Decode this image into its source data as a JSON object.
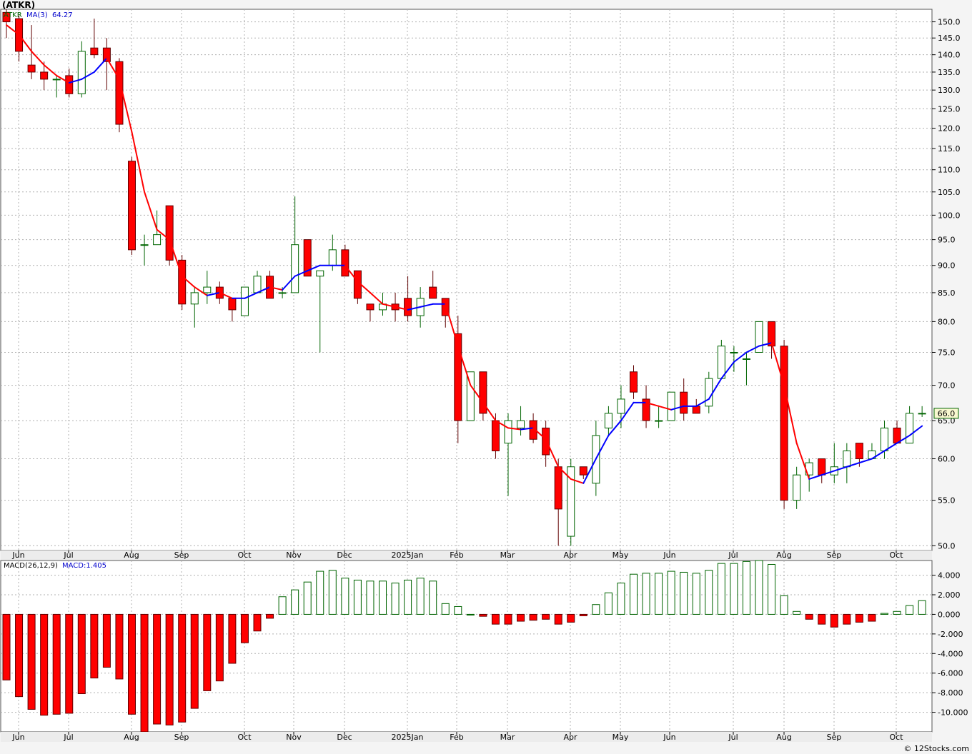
{
  "ticker_title": "(ATKR)",
  "credit": "© 12Stocks.com",
  "legend_price": {
    "ticker": "ATKR",
    "ma_label": "MA(3)",
    "ma_value": "64.27"
  },
  "legend_macd": {
    "label": "MACD(26,12,9)",
    "value": "MACD:1.405"
  },
  "last_price_label": "66.0",
  "colors": {
    "up": "#ffffff",
    "up_border": "#006400",
    "down": "#ff0000",
    "down_border": "#600000",
    "ma_up": "#0000ff",
    "ma_down": "#ff0000",
    "grid": "#b0b0b0",
    "hist_pos": "#ffffff",
    "hist_pos_border": "#006400",
    "hist_neg": "#ff0000"
  },
  "chart_data": [
    {
      "type": "candlestick",
      "scale": "log",
      "ylim": [
        49.5,
        154
      ],
      "y_ticks": [
        "50.0",
        "55.0",
        "60.0",
        "65.0",
        "70.0",
        "75.0",
        "80.0",
        "85.0",
        "90.0",
        "95.0",
        "100.0",
        "105.0",
        "110.0",
        "115.0",
        "120.0",
        "125.0",
        "130.0",
        "135.0",
        "140.0",
        "145.0",
        "150.0"
      ],
      "x_labels": [
        "Jun",
        "Jul",
        "Aug",
        "Sep",
        "Oct",
        "Nov",
        "Dec",
        "2025Jan",
        "Feb",
        "Mar",
        "Apr",
        "May",
        "Jun",
        "Jul",
        "Aug",
        "Sep",
        "Oct"
      ],
      "ohlc": [
        [
          153,
          154,
          145,
          150
        ],
        [
          151,
          152,
          138,
          141
        ],
        [
          137,
          149,
          133,
          135
        ],
        [
          135,
          138,
          130,
          133
        ],
        [
          133,
          134,
          128,
          133
        ],
        [
          134,
          136,
          128,
          129
        ],
        [
          129,
          144,
          128,
          141
        ],
        [
          142,
          151,
          139,
          140
        ],
        [
          142,
          145,
          130,
          138
        ],
        [
          138,
          139,
          119,
          121
        ],
        [
          112,
          113,
          92,
          93
        ],
        [
          94,
          96,
          90,
          94
        ],
        [
          94,
          101,
          94,
          96
        ],
        [
          102,
          102,
          90,
          91
        ],
        [
          91,
          92,
          82,
          83
        ],
        [
          83,
          86,
          79,
          85
        ],
        [
          85,
          89,
          83,
          86
        ],
        [
          86,
          87,
          83,
          84
        ],
        [
          84,
          84,
          80,
          82
        ],
        [
          81,
          86,
          81,
          86
        ],
        [
          85,
          89,
          85,
          88
        ],
        [
          88,
          89,
          84,
          84
        ],
        [
          85,
          86,
          84,
          85
        ],
        [
          85,
          104,
          85,
          94
        ],
        [
          95,
          95,
          88,
          88
        ],
        [
          88,
          89,
          75,
          89
        ],
        [
          90,
          96,
          89,
          93
        ],
        [
          93,
          94,
          88,
          88
        ],
        [
          89,
          89,
          83,
          84
        ],
        [
          83,
          83,
          80,
          82
        ],
        [
          82,
          85,
          81,
          83
        ],
        [
          83,
          85,
          80,
          82
        ],
        [
          84,
          88,
          80,
          81
        ],
        [
          81,
          86,
          79,
          84
        ],
        [
          86,
          89,
          84,
          84
        ],
        [
          84,
          84,
          79,
          81
        ],
        [
          78,
          81,
          62,
          65
        ],
        [
          65,
          72,
          65,
          72
        ],
        [
          72,
          72,
          65,
          66
        ],
        [
          65,
          66,
          60,
          61
        ],
        [
          62,
          66,
          55.5,
          65
        ],
        [
          64,
          67,
          63,
          65
        ],
        [
          65,
          66,
          62,
          62.5
        ],
        [
          64,
          65,
          59,
          60.5
        ],
        [
          59,
          60,
          50,
          54
        ],
        [
          51,
          60,
          50,
          59
        ],
        [
          59,
          59,
          57.5,
          58
        ],
        [
          57,
          65,
          55.5,
          63
        ],
        [
          64,
          67,
          63,
          66
        ],
        [
          66,
          70,
          64,
          68
        ],
        [
          72,
          73,
          68,
          69
        ],
        [
          68,
          70,
          64,
          65
        ],
        [
          65,
          67,
          64,
          65
        ],
        [
          65,
          69,
          65,
          69
        ],
        [
          69,
          71,
          65,
          66
        ],
        [
          67,
          68,
          66,
          66
        ],
        [
          67,
          72,
          66,
          71
        ],
        [
          71,
          77,
          71,
          76
        ],
        [
          75,
          76,
          72,
          75
        ],
        [
          74,
          75,
          70,
          74
        ],
        [
          75,
          80,
          75,
          80
        ],
        [
          80,
          80,
          74,
          76
        ],
        [
          76,
          77,
          54,
          55
        ],
        [
          55,
          59,
          54,
          58
        ],
        [
          58,
          60,
          56,
          59.5
        ],
        [
          60,
          60,
          57,
          58
        ],
        [
          58,
          62,
          57,
          59
        ],
        [
          59,
          62,
          57,
          61
        ],
        [
          62,
          62,
          59,
          60
        ],
        [
          60,
          62,
          60,
          61
        ],
        [
          61,
          65,
          60,
          64
        ],
        [
          64,
          65,
          62,
          62
        ],
        [
          62,
          67,
          62,
          66
        ],
        [
          66,
          67,
          65.5,
          66
        ]
      ],
      "ma3": [
        149,
        146,
        141,
        137,
        134,
        132,
        133,
        135,
        139,
        133,
        119,
        105,
        97,
        95,
        88,
        86,
        84.5,
        85,
        84,
        84,
        85,
        86,
        85.5,
        88,
        89,
        90,
        90,
        90,
        87,
        85,
        83,
        82.5,
        82,
        82.5,
        83,
        83,
        76,
        70,
        67.5,
        65,
        64,
        63.8,
        64,
        62.5,
        59,
        57.5,
        57,
        60,
        63,
        65,
        67.5,
        67.5,
        67,
        66.5,
        67,
        67,
        68,
        71,
        73.5,
        75,
        76,
        76.5,
        70,
        62,
        57.5,
        58,
        58.5,
        59,
        59.5,
        60,
        61,
        62,
        63,
        64.27
      ]
    },
    {
      "type": "bar",
      "title": "MACD(26,12,9)",
      "ylim": [
        -12,
        5.5
      ],
      "y_ticks": [
        "4.000",
        "2.000",
        "0.000",
        "-2.000",
        "-4.000",
        "-6.000",
        "-8.000",
        "-10.000"
      ],
      "x_labels": [
        "Jun",
        "Jul",
        "Aug",
        "Sep",
        "Oct",
        "Nov",
        "Dec",
        "2025Jan",
        "Feb",
        "Mar",
        "Apr",
        "May",
        "Jun",
        "Jul",
        "Aug",
        "Sep",
        "Oct"
      ],
      "values": [
        -6.7,
        -8.4,
        -9.7,
        -10.3,
        -10.2,
        -10.1,
        -8.1,
        -6.5,
        -5.4,
        -6.6,
        -10.2,
        -12.0,
        -11.2,
        -11.3,
        -11.0,
        -9.6,
        -7.8,
        -6.8,
        -5.0,
        -2.9,
        -1.7,
        -0.4,
        1.8,
        2.5,
        3.3,
        4.4,
        4.5,
        3.7,
        3.5,
        3.4,
        3.4,
        3.2,
        3.5,
        3.7,
        3.4,
        1.1,
        0.8,
        0.0,
        -0.2,
        -1.0,
        -1.0,
        -0.7,
        -0.6,
        -0.5,
        -1.0,
        -0.8,
        -0.15,
        1.0,
        2.2,
        3.2,
        4.1,
        4.2,
        4.2,
        4.4,
        4.3,
        4.2,
        4.5,
        5.2,
        5.2,
        5.4,
        5.5,
        5.1,
        1.9,
        0.3,
        -0.5,
        -1.0,
        -1.3,
        -1.0,
        -0.8,
        -0.7,
        0.1,
        0.3,
        0.9,
        1.4
      ]
    }
  ]
}
